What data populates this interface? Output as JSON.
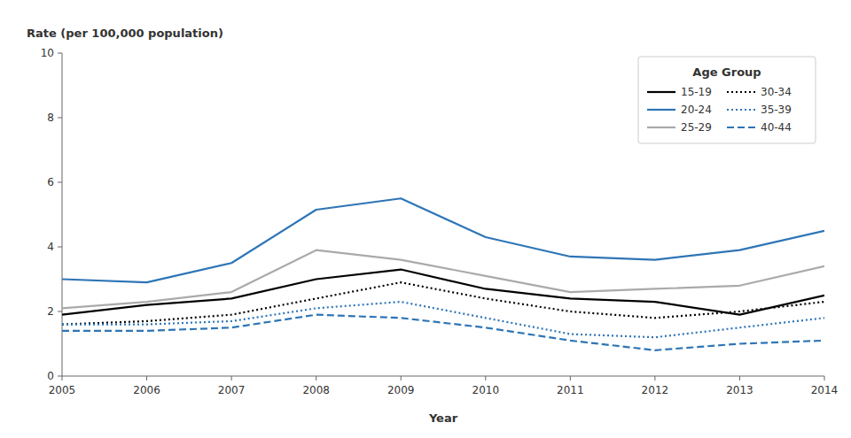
{
  "chart_data": {
    "type": "line",
    "x_label": "Year",
    "y_label": "Rate (per 100,000 population)",
    "x": [
      2005,
      2006,
      2007,
      2008,
      2009,
      2010,
      2011,
      2012,
      2013,
      2014
    ],
    "xlim": [
      2005,
      2014
    ],
    "xticks": [
      2005,
      2006,
      2007,
      2008,
      2009,
      2010,
      2011,
      2012,
      2013,
      2014
    ],
    "ylim": [
      0,
      10
    ],
    "yticks": [
      0,
      2,
      4,
      6,
      8,
      10
    ],
    "grid": false,
    "legend": "upper-right",
    "legend_title": "Age Group",
    "series": [
      {
        "name": "15-19",
        "color": "#000000",
        "line_style": "solid",
        "values": [
          1.9,
          2.2,
          2.4,
          3.0,
          3.3,
          2.7,
          2.4,
          2.3,
          1.9,
          2.5
        ]
      },
      {
        "name": "20-24",
        "color": "#2e75b6",
        "line_style": "solid",
        "values": [
          3.0,
          2.9,
          3.5,
          5.15,
          5.5,
          4.3,
          3.7,
          3.6,
          3.9,
          4.5
        ]
      },
      {
        "name": "25-29",
        "color": "#aaaaaa",
        "line_style": "solid",
        "values": [
          2.1,
          2.3,
          2.6,
          3.9,
          3.6,
          3.1,
          2.6,
          2.7,
          2.8,
          3.4
        ]
      },
      {
        "name": "30-34",
        "color": "#000000",
        "line_style": "dotted",
        "values": [
          1.6,
          1.7,
          1.9,
          2.4,
          2.9,
          2.4,
          2.0,
          1.8,
          2.0,
          2.3
        ]
      },
      {
        "name": "35-39",
        "color": "#2e75b6",
        "line_style": "dotted",
        "values": [
          1.6,
          1.6,
          1.7,
          2.1,
          2.3,
          1.8,
          1.3,
          1.2,
          1.5,
          1.8
        ]
      },
      {
        "name": "40-44",
        "color": "#2e75b6",
        "line_style": "dashed",
        "values": [
          1.4,
          1.4,
          1.5,
          1.9,
          1.8,
          1.5,
          1.1,
          0.8,
          1.0,
          1.1
        ]
      }
    ]
  }
}
